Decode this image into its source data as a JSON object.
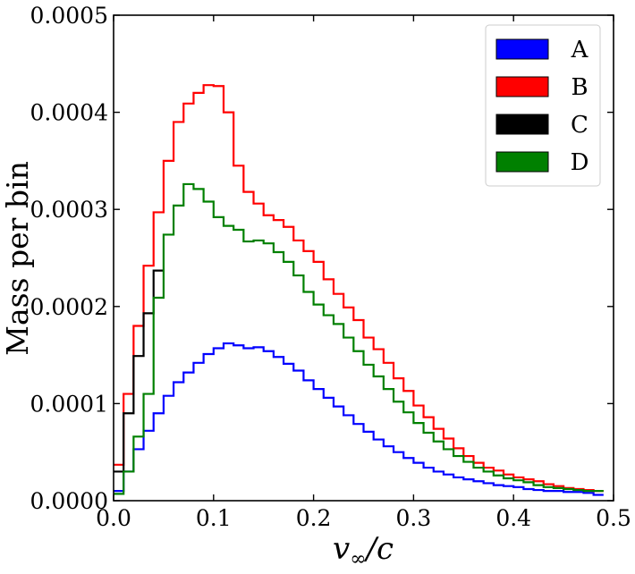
{
  "chart_data": {
    "type": "line",
    "step": true,
    "xlabel_main": "v",
    "xlabel_sub": "∞",
    "xlabel_tail": "/c",
    "ylabel": "Mass per bin",
    "xlim": [
      0.0,
      0.5
    ],
    "ylim": [
      0.0,
      0.0005
    ],
    "x_ticks": [
      0.0,
      0.1,
      0.2,
      0.3,
      0.4,
      0.5
    ],
    "x_tick_labels": [
      "0.0",
      "0.1",
      "0.2",
      "0.3",
      "0.4",
      "0.5"
    ],
    "y_ticks": [
      0.0,
      0.0001,
      0.0002,
      0.0003,
      0.0004,
      0.0005
    ],
    "y_tick_labels": [
      "0.0000",
      "0.0001",
      "0.0002",
      "0.0003",
      "0.0004",
      "0.0005"
    ],
    "grid": false,
    "legend": "top-right",
    "bin_edges": [
      0.0,
      0.01,
      0.02,
      0.03,
      0.04,
      0.05,
      0.06,
      0.07,
      0.08,
      0.09,
      0.1,
      0.11,
      0.12,
      0.13,
      0.14,
      0.15,
      0.16,
      0.17,
      0.18,
      0.19,
      0.2,
      0.21,
      0.22,
      0.23,
      0.24,
      0.25,
      0.26,
      0.27,
      0.28,
      0.29,
      0.3,
      0.31,
      0.32,
      0.33,
      0.34,
      0.35,
      0.36,
      0.37,
      0.38,
      0.39,
      0.4,
      0.41,
      0.42,
      0.43,
      0.44,
      0.45,
      0.46,
      0.47,
      0.48,
      0.49
    ],
    "series": [
      {
        "name": "A",
        "color": "#0000ff",
        "values": [
          1e-05,
          3e-05,
          5.3e-05,
          7.2e-05,
          9e-05,
          0.000108,
          0.000122,
          0.000132,
          0.000142,
          0.000151,
          0.000157,
          0.000162,
          0.00016,
          0.000157,
          0.000158,
          0.000154,
          0.000148,
          0.000141,
          0.000134,
          0.000124,
          0.000115,
          0.000106,
          9.7e-05,
          8.8e-05,
          7.9e-05,
          7.1e-05,
          6.3e-05,
          5.6e-05,
          5e-05,
          4.4e-05,
          3.9e-05,
          3.4e-05,
          3e-05,
          2.7e-05,
          2.4e-05,
          2.2e-05,
          2e-05,
          1.8e-05,
          1.6e-05,
          1.5e-05,
          1.4e-05,
          1.2e-05,
          1.1e-05,
          1e-05,
          1e-05,
          9e-06,
          9e-06,
          8e-06,
          6e-06
        ]
      },
      {
        "name": "B",
        "color": "#ff0000",
        "values": [
          3.7e-05,
          0.00011,
          0.00018,
          0.000242,
          0.000297,
          0.00035,
          0.00039,
          0.000409,
          0.00042,
          0.000428,
          0.000427,
          0.0004,
          0.000345,
          0.000318,
          0.000306,
          0.000294,
          0.000289,
          0.000282,
          0.000268,
          0.000257,
          0.000246,
          0.000228,
          0.000213,
          0.000199,
          0.000186,
          0.000168,
          0.000156,
          0.000142,
          0.000126,
          0.000113,
          9.8e-05,
          8.6e-05,
          7.4e-05,
          6.4e-05,
          5.4e-05,
          4.6e-05,
          3.9e-05,
          3.4e-05,
          3.1e-05,
          2.7e-05,
          2.4e-05,
          2.2e-05,
          2e-05,
          1.7e-05,
          1.5e-05,
          1.3e-05,
          1.2e-05,
          1.1e-05,
          1e-05
        ]
      },
      {
        "name": "C",
        "color": "#000000",
        "values": [
          3e-05,
          9e-05,
          0.000149,
          0.000193,
          0.000237
        ]
      },
      {
        "name": "D",
        "color": "#008000",
        "values": [
          7e-06,
          3e-05,
          6.6e-05,
          0.00011,
          0.000209,
          0.000274,
          0.000304,
          0.000326,
          0.000321,
          0.000308,
          0.000292,
          0.000283,
          0.000279,
          0.000267,
          0.000268,
          0.000265,
          0.000256,
          0.000246,
          0.000232,
          0.000215,
          0.000202,
          0.000191,
          0.000182,
          0.000168,
          0.000154,
          0.00014,
          0.000128,
          0.000115,
          0.000102,
          9.1e-05,
          8e-05,
          7e-05,
          6.1e-05,
          5.3e-05,
          4.6e-05,
          4e-05,
          3.4e-05,
          3e-05,
          2.6e-05,
          2.3e-05,
          2.1e-05,
          1.9e-05,
          1.6e-05,
          1.4e-05,
          1.3e-05,
          1.2e-05,
          1.1e-05,
          1e-05,
          1e-05
        ]
      }
    ]
  }
}
